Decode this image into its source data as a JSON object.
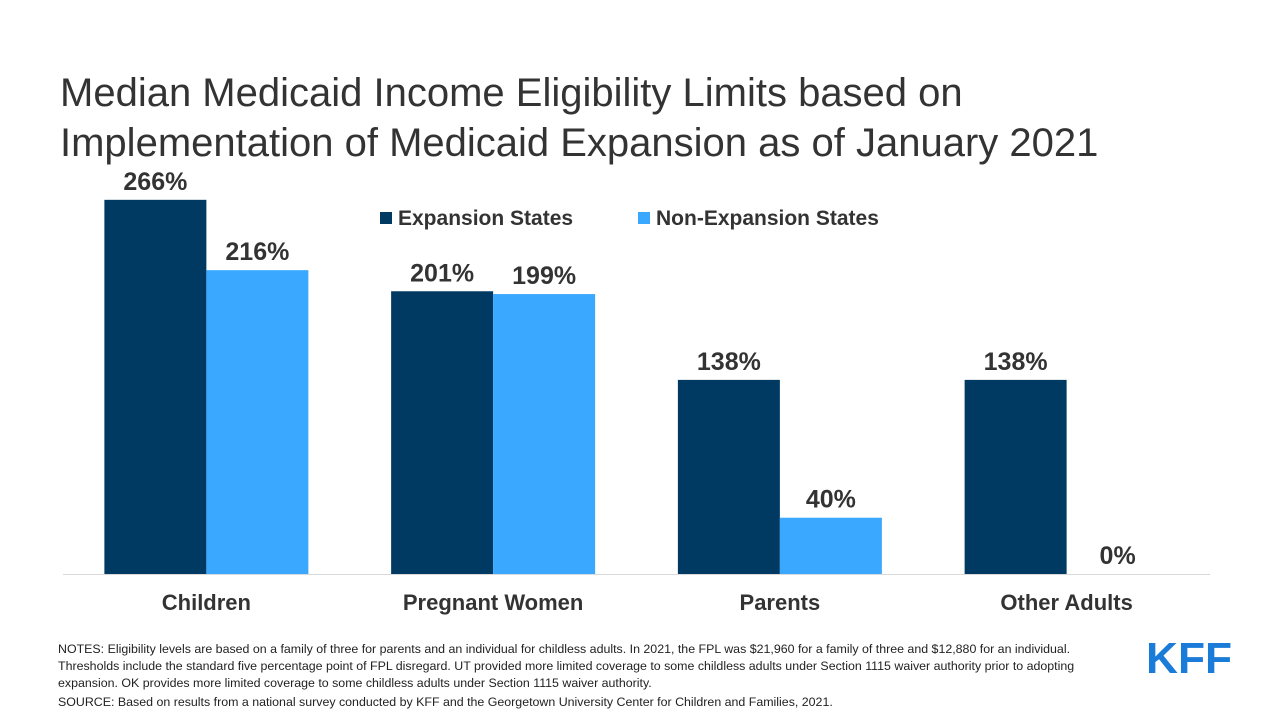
{
  "title": {
    "line1": "Median Medicaid Income Eligibility Limits based on",
    "line2": "Implementation of Medicaid Expansion as of January 2021"
  },
  "colors": {
    "expansion": "#003a63",
    "non_expansion": "#3aa8ff",
    "axis": "#d9d9d9",
    "text": "#333333"
  },
  "chart_data": {
    "type": "bar",
    "title": "Median Medicaid Income Eligibility Limits based on Implementation of Medicaid Expansion as of January 2021",
    "categories": [
      "Children",
      "Pregnant Women",
      "Parents",
      "Other Adults"
    ],
    "series": [
      {
        "name": "Expansion States",
        "values": [
          266,
          201,
          138,
          138
        ],
        "labels": [
          "266%",
          "201%",
          "138%",
          "138%"
        ],
        "color": "#003a63"
      },
      {
        "name": "Non-Expansion States",
        "values": [
          216,
          199,
          40,
          0
        ],
        "labels": [
          "216%",
          "199%",
          "40%",
          "0%"
        ],
        "color": "#3aa8ff"
      }
    ],
    "xlabel": "",
    "ylabel": "",
    "ylim": [
      0,
      300
    ],
    "grid": false,
    "legend_position": "top-center"
  },
  "notes": {
    "notes_text": "NOTES: Eligibility levels are based on a family of three for parents and an individual for childless adults. In 2021, the FPL was $21,960 for a family of three and $12,880 for an individual.  Thresholds include the standard five percentage point of FPL disregard. UT provided more limited coverage to some childless adults under Section 1115 waiver authority prior to adopting expansion. OK provides more limited coverage to some childless adults under Section 1115 waiver authority.",
    "source_text": "SOURCE: Based on results from a national survey conducted by KFF and the Georgetown University Center for Children and Families, 2021."
  },
  "logo": {
    "text": "KFF",
    "color": "#1a7bd8"
  }
}
